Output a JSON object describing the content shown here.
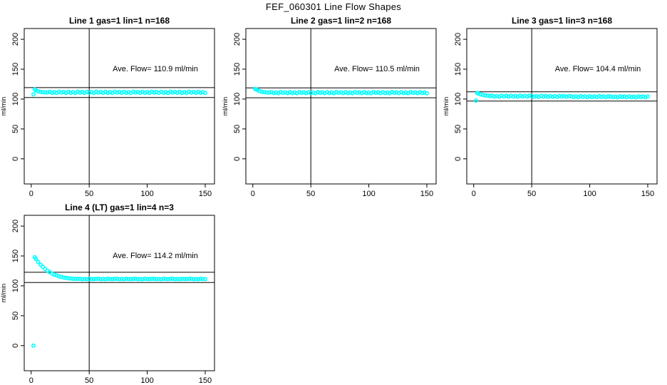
{
  "figure": {
    "title": "FEF_060301  Line Flow Shapes",
    "background": "#ffffff",
    "point_color": "#00ffff",
    "line_color": "#000000"
  },
  "chart_data": [
    {
      "type": "scatter",
      "title": "Line 1 gas=1 lin=1 n=168",
      "annotation": "Ave. Flow=  110.9  ml/min",
      "ave_flow_ml_min": 110.9,
      "n": 168,
      "ylabel": "ml/min",
      "xticks": [
        0,
        50,
        100,
        150
      ],
      "yticks": [
        0,
        50,
        100,
        150,
        200
      ],
      "xlim": [
        -6,
        158
      ],
      "ylim": [
        -42,
        218
      ],
      "ref_lines_h": [
        119.2,
        102.6
      ],
      "ref_lines_v": [
        50
      ],
      "x": [
        2,
        3,
        4,
        6,
        8,
        10,
        12,
        14,
        16,
        18,
        20,
        22,
        24,
        26,
        28,
        30,
        32,
        34,
        36,
        38,
        40,
        42,
        44,
        46,
        48,
        50,
        52,
        54,
        56,
        58,
        60,
        62,
        64,
        66,
        68,
        70,
        72,
        74,
        76,
        78,
        80,
        82,
        84,
        86,
        88,
        90,
        92,
        94,
        96,
        98,
        100,
        102,
        104,
        106,
        108,
        110,
        112,
        114,
        116,
        118,
        120,
        122,
        124,
        126,
        128,
        130,
        132,
        134,
        136,
        138,
        140,
        142,
        144,
        146,
        148,
        150
      ],
      "y": [
        108.0,
        116.2,
        114.6,
        112.9,
        112.0,
        111.6,
        111.3,
        111.1,
        112.1,
        110.5,
        111.6,
        110.2,
        112.3,
        110.9,
        111.8,
        110.4,
        112.1,
        110.5,
        111.6,
        110.2,
        112.3,
        110.9,
        111.8,
        110.4,
        112.1,
        110.5,
        111.6,
        110.2,
        112.3,
        110.9,
        111.8,
        110.4,
        112.1,
        110.5,
        111.6,
        110.2,
        112.3,
        110.9,
        111.8,
        110.4,
        112.1,
        110.5,
        111.6,
        110.2,
        112.3,
        110.9,
        111.8,
        110.4,
        112.1,
        110.5,
        111.6,
        110.2,
        112.3,
        110.9,
        111.8,
        110.4,
        112.1,
        110.5,
        111.6,
        110.2,
        112.3,
        110.9,
        111.8,
        110.4,
        112.1,
        110.5,
        111.6,
        110.2,
        112.3,
        110.9,
        111.8,
        110.4,
        112.1,
        110.5,
        111.6,
        110.2
      ]
    },
    {
      "type": "scatter",
      "title": "Line 2 gas=1 lin=2 n=168",
      "annotation": "Ave. Flow=  110.5  ml/min",
      "ave_flow_ml_min": 110.5,
      "n": 168,
      "ylabel": "ml/min",
      "xticks": [
        0,
        50,
        100,
        150
      ],
      "yticks": [
        0,
        50,
        100,
        150,
        200
      ],
      "xlim": [
        -6,
        158
      ],
      "ylim": [
        -42,
        218
      ],
      "ref_lines_h": [
        118.7,
        102.2
      ],
      "ref_lines_v": [
        50
      ],
      "x": [
        2,
        3,
        4,
        6,
        8,
        10,
        12,
        14,
        16,
        18,
        20,
        22,
        24,
        26,
        28,
        30,
        32,
        34,
        36,
        38,
        40,
        42,
        44,
        46,
        48,
        50,
        52,
        54,
        56,
        58,
        60,
        62,
        64,
        66,
        68,
        70,
        72,
        74,
        76,
        78,
        80,
        82,
        84,
        86,
        88,
        90,
        92,
        94,
        96,
        98,
        100,
        102,
        104,
        106,
        108,
        110,
        112,
        114,
        116,
        118,
        120,
        122,
        124,
        126,
        128,
        130,
        132,
        134,
        136,
        138,
        140,
        142,
        144,
        146,
        148,
        150
      ],
      "y": [
        117.0,
        116.3,
        115.0,
        113.2,
        112.1,
        111.4,
        111.0,
        110.8,
        111.5,
        110.1,
        111.0,
        109.8,
        111.7,
        110.5,
        111.2,
        110.0,
        111.5,
        110.1,
        111.0,
        109.8,
        111.7,
        110.5,
        111.2,
        110.0,
        111.5,
        110.1,
        111.0,
        109.8,
        111.7,
        110.5,
        111.2,
        110.0,
        111.5,
        110.1,
        111.0,
        109.8,
        111.7,
        110.5,
        111.2,
        110.0,
        111.5,
        110.1,
        111.0,
        109.8,
        111.7,
        110.5,
        111.2,
        110.0,
        111.5,
        110.1,
        111.0,
        109.8,
        111.7,
        110.5,
        111.2,
        110.0,
        111.5,
        110.1,
        111.0,
        109.8,
        111.7,
        110.5,
        111.2,
        110.0,
        111.5,
        110.1,
        111.0,
        109.8,
        111.7,
        110.5,
        111.2,
        110.0,
        111.5,
        110.1,
        111.0,
        109.8
      ]
    },
    {
      "type": "scatter",
      "title": "Line 3 gas=1 lin=3 n=168",
      "annotation": "Ave. Flow=  104.4  ml/min",
      "ave_flow_ml_min": 104.4,
      "n": 168,
      "ylabel": "ml/min",
      "xticks": [
        0,
        50,
        100,
        150
      ],
      "yticks": [
        0,
        50,
        100,
        150,
        200
      ],
      "xlim": [
        -6,
        158
      ],
      "ylim": [
        -42,
        218
      ],
      "ref_lines_h": [
        112.2,
        96.6
      ],
      "ref_lines_v": [
        50
      ],
      "x": [
        2,
        3,
        4,
        6,
        8,
        10,
        12,
        14,
        16,
        18,
        20,
        22,
        24,
        26,
        28,
        30,
        32,
        34,
        36,
        38,
        40,
        42,
        44,
        46,
        48,
        50,
        52,
        54,
        56,
        58,
        60,
        62,
        64,
        66,
        68,
        70,
        72,
        74,
        76,
        78,
        80,
        82,
        84,
        86,
        88,
        90,
        92,
        94,
        96,
        98,
        100,
        102,
        104,
        106,
        108,
        110,
        112,
        114,
        116,
        118,
        120,
        122,
        124,
        126,
        128,
        130,
        132,
        134,
        136,
        138,
        140,
        142,
        144,
        146,
        148,
        150
      ],
      "y": [
        97.5,
        110.2,
        109.4,
        108.0,
        106.9,
        106.1,
        105.5,
        105.1,
        105.5,
        104.2,
        105.1,
        104.0,
        105.7,
        104.6,
        105.3,
        104.1,
        105.5,
        104.2,
        105.1,
        104.0,
        105.7,
        104.6,
        105.3,
        104.1,
        105.5,
        105.1,
        103.8,
        104.7,
        103.6,
        105.3,
        104.2,
        104.9,
        103.7,
        105.1,
        103.8,
        104.7,
        103.6,
        105.3,
        104.2,
        104.9,
        103.7,
        105.1,
        104.7,
        103.4,
        104.3,
        103.2,
        104.9,
        103.8,
        104.5,
        103.3,
        104.7,
        103.4,
        104.3,
        103.2,
        104.9,
        103.8,
        104.5,
        103.3,
        104.7,
        104.4,
        103.1,
        104.0,
        102.9,
        104.6,
        103.5,
        104.2,
        103.0,
        104.4,
        103.1,
        104.0,
        102.9,
        104.6,
        103.5,
        104.2,
        103.0,
        104.4
      ]
    },
    {
      "type": "scatter",
      "title": "Line 4 (LT) gas=1 lin=4 n=3",
      "annotation": "Ave. Flow=  114.2  ml/min",
      "ave_flow_ml_min": 114.2,
      "n": 3,
      "ylabel": "ml/min",
      "xticks": [
        0,
        50,
        100,
        150
      ],
      "yticks": [
        0,
        50,
        100,
        150,
        200
      ],
      "xlim": [
        -6,
        158
      ],
      "ylim": [
        -42,
        218
      ],
      "ref_lines_h": [
        122.8,
        105.6
      ],
      "ref_lines_v": [
        50
      ],
      "x": [
        2,
        3,
        4,
        6,
        8,
        10,
        12,
        14,
        16,
        18,
        20,
        22,
        24,
        26,
        28,
        30,
        32,
        34,
        36,
        38,
        40,
        42,
        44,
        46,
        48,
        50,
        52,
        54,
        56,
        58,
        60,
        62,
        64,
        66,
        68,
        70,
        72,
        74,
        76,
        78,
        80,
        82,
        84,
        86,
        88,
        90,
        92,
        94,
        96,
        98,
        100,
        102,
        104,
        106,
        108,
        110,
        112,
        114,
        116,
        118,
        120,
        122,
        124,
        126,
        128,
        130,
        132,
        134,
        136,
        138,
        140,
        142,
        144,
        146,
        148,
        150
      ],
      "y": [
        0.0,
        148.0,
        145.2,
        140.1,
        135.6,
        131.7,
        128.3,
        125.4,
        122.9,
        120.7,
        118.9,
        117.3,
        116.0,
        114.9,
        114.0,
        113.3,
        112.7,
        112.3,
        111.9,
        111.7,
        111.5,
        111.8,
        111.1,
        111.6,
        111.0,
        111.9,
        111.4,
        111.2,
        111.7,
        111.8,
        111.1,
        111.6,
        111.0,
        111.9,
        111.4,
        111.2,
        111.7,
        111.8,
        111.1,
        111.6,
        111.0,
        111.9,
        111.4,
        111.2,
        111.7,
        111.8,
        111.1,
        111.6,
        111.0,
        111.9,
        111.4,
        111.2,
        111.7,
        111.8,
        111.1,
        111.6,
        111.0,
        111.9,
        111.4,
        111.2,
        111.7,
        111.8,
        111.1,
        111.6,
        111.0,
        111.9,
        111.4,
        111.2,
        111.7,
        111.8,
        111.1,
        111.6,
        111.0,
        111.9,
        111.4,
        111.2
      ]
    }
  ]
}
